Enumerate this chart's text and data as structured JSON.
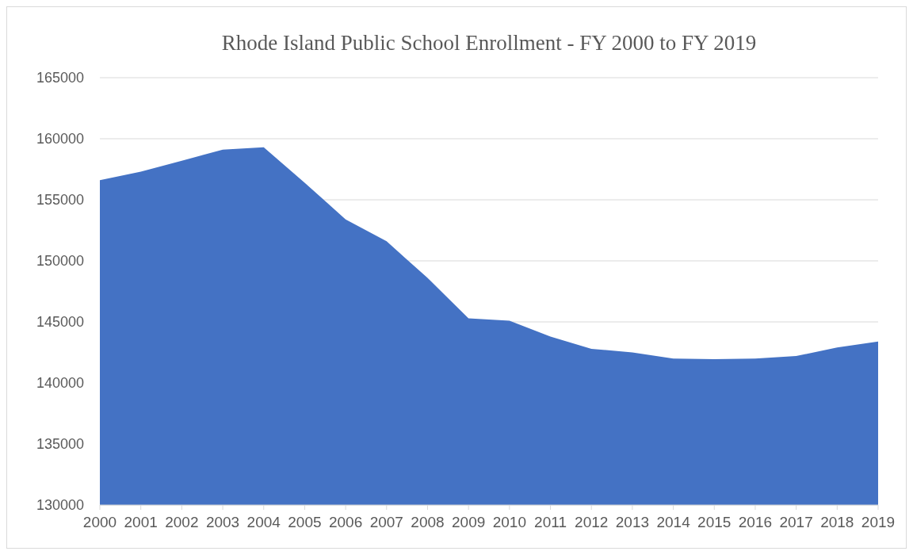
{
  "chart_data": {
    "type": "area",
    "title": "Rhode Island Public School Enrollment - FY 2000 to FY 2019",
    "categories": [
      "2000",
      "2001",
      "2002",
      "2003",
      "2004",
      "2005",
      "2006",
      "2007",
      "2008",
      "2009",
      "2010",
      "2011",
      "2012",
      "2013",
      "2014",
      "2015",
      "2016",
      "2017",
      "2018",
      "2019"
    ],
    "series": [
      {
        "color": "#4472c4",
        "values": [
          156600,
          157300,
          158200,
          159100,
          159300,
          156400,
          153400,
          151600,
          148600,
          145300,
          145100,
          143800,
          142800,
          142500,
          142000,
          141950,
          142000,
          142200,
          142900,
          143400
        ]
      }
    ],
    "ylim": [
      130000,
      165000
    ],
    "yticks": [
      130000,
      135000,
      140000,
      145000,
      150000,
      155000,
      160000,
      165000
    ],
    "grid": "y"
  }
}
